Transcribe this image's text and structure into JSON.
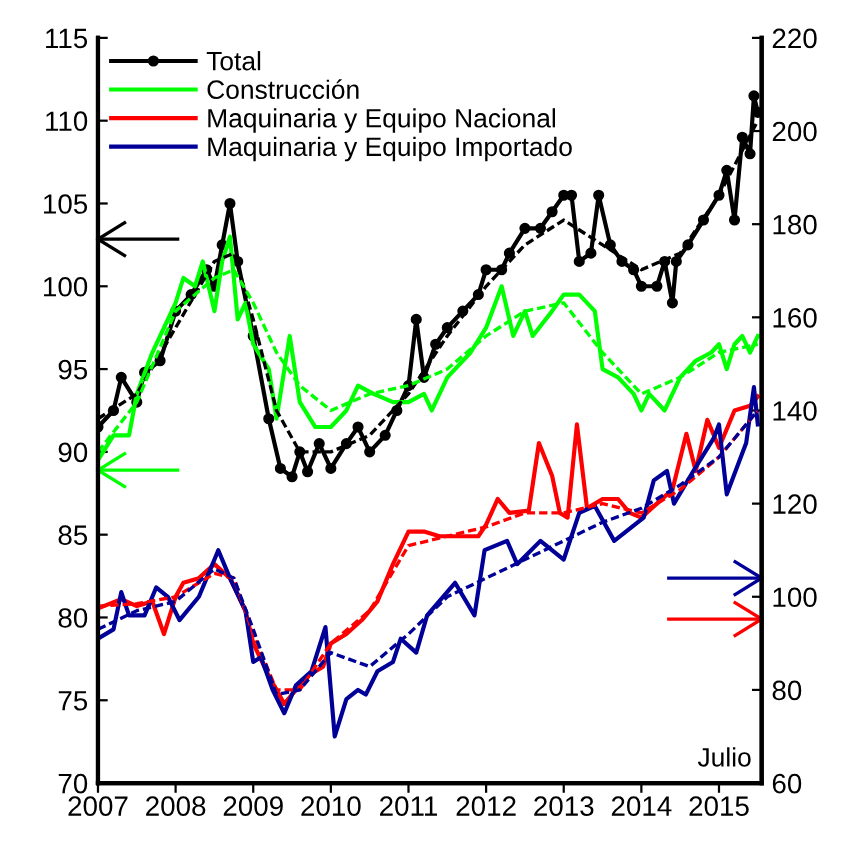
{
  "chart_data": {
    "type": "line",
    "xlim": [
      2007,
      2015.55
    ],
    "xticks": [
      2007,
      2008,
      2009,
      2010,
      2011,
      2012,
      2013,
      2014,
      2015
    ],
    "ylim": [
      70,
      115
    ],
    "yticks": [
      70,
      75,
      80,
      85,
      90,
      95,
      100,
      105,
      110,
      115
    ],
    "y2lim": [
      60,
      220
    ],
    "y2ticks": [
      60,
      80,
      100,
      120,
      140,
      160,
      180,
      200,
      220
    ],
    "legend": "top left",
    "grid": false,
    "annotations": [
      "Julio"
    ],
    "series": [
      {
        "name": "Total",
        "axis": "y",
        "color": "#000000",
        "marker": "circle",
        "line_style": "solid",
        "x": [
          2007.0,
          2007.2,
          2007.3,
          2007.5,
          2007.6,
          2007.8,
          2008.0,
          2008.2,
          2008.4,
          2008.5,
          2008.6,
          2008.7,
          2008.8,
          2009.0,
          2009.2,
          2009.35,
          2009.5,
          2009.6,
          2009.7,
          2009.85,
          2010.0,
          2010.2,
          2010.35,
          2010.5,
          2010.7,
          2010.85,
          2011.0,
          2011.1,
          2011.2,
          2011.35,
          2011.5,
          2011.7,
          2011.9,
          2012.0,
          2012.2,
          2012.3,
          2012.5,
          2012.7,
          2012.85,
          2013.0,
          2013.1,
          2013.2,
          2013.35,
          2013.45,
          2013.6,
          2013.75,
          2013.9,
          2014.0,
          2014.2,
          2014.3,
          2014.4,
          2014.45,
          2014.6,
          2014.8,
          2015.0,
          2015.1,
          2015.2,
          2015.3,
          2015.4,
          2015.45,
          2015.5
        ],
        "values": [
          91.5,
          92.5,
          94.5,
          93,
          94.8,
          95.5,
          98.5,
          99.5,
          101,
          100,
          102.5,
          105,
          101.5,
          97,
          92,
          89,
          88.5,
          90,
          88.8,
          90.5,
          89,
          90.5,
          91.5,
          90,
          91,
          92.5,
          94,
          98,
          94.5,
          96.5,
          97.5,
          98.5,
          99.5,
          101,
          101,
          102,
          103.5,
          103.5,
          104.5,
          105.5,
          105.5,
          101.5,
          102,
          105.5,
          102.5,
          101.5,
          101,
          100,
          100,
          101.5,
          99,
          101.5,
          102.5,
          104,
          105.5,
          107,
          104,
          109,
          108,
          111.5,
          110.5
        ]
      },
      {
        "name": "Construcción",
        "axis": "y",
        "color": "#00ff00",
        "line_style": "solid",
        "x": [
          2007.0,
          2007.2,
          2007.4,
          2007.5,
          2007.7,
          2008.0,
          2008.1,
          2008.25,
          2008.35,
          2008.5,
          2008.6,
          2008.7,
          2008.8,
          2008.9,
          2009.0,
          2009.2,
          2009.3,
          2009.47,
          2009.6,
          2009.8,
          2010.0,
          2010.2,
          2010.35,
          2010.55,
          2010.8,
          2011.0,
          2011.2,
          2011.3,
          2011.5,
          2011.8,
          2012.0,
          2012.2,
          2012.35,
          2012.5,
          2012.6,
          2012.85,
          2013.0,
          2013.2,
          2013.4,
          2013.5,
          2013.7,
          2013.9,
          2014.0,
          2014.1,
          2014.3,
          2014.5,
          2014.7,
          2014.9,
          2015.0,
          2015.1,
          2015.2,
          2015.3,
          2015.4,
          2015.5
        ],
        "values": [
          89.5,
          91,
          91,
          93.5,
          96,
          99,
          100.5,
          100,
          101.5,
          98.5,
          101.5,
          103,
          98,
          99,
          96.5,
          95,
          92,
          97,
          93,
          91.5,
          91.5,
          92.5,
          94,
          93.5,
          93,
          93,
          93.5,
          92.5,
          94.5,
          96,
          97.5,
          100,
          97,
          98.5,
          97,
          98.5,
          99.5,
          99.5,
          98.5,
          95,
          94.5,
          93.5,
          92.5,
          93.5,
          92.5,
          94.5,
          95.5,
          96,
          96.5,
          95,
          96.5,
          97,
          96,
          97
        ]
      },
      {
        "name": "Maquinaria y Equipo Nacional",
        "axis": "y2",
        "color": "#ff0000",
        "line_style": "solid",
        "x": [
          2007.0,
          2007.3,
          2007.5,
          2007.7,
          2007.85,
          2008.0,
          2008.1,
          2008.3,
          2008.5,
          2008.7,
          2008.9,
          2009.0,
          2009.2,
          2009.4,
          2009.55,
          2009.7,
          2009.9,
          2010.0,
          2010.2,
          2010.4,
          2010.6,
          2010.8,
          2011.0,
          2011.2,
          2011.4,
          2011.6,
          2011.9,
          2012.0,
          2012.15,
          2012.3,
          2012.55,
          2012.68,
          2012.85,
          2012.95,
          2013.05,
          2013.17,
          2013.3,
          2013.5,
          2013.7,
          2013.85,
          2014.0,
          2014.2,
          2014.4,
          2014.58,
          2014.7,
          2014.85,
          2015.0,
          2015.2,
          2015.4,
          2015.5
        ],
        "values": [
          97.5,
          99.5,
          98,
          99,
          92,
          100,
          103,
          104,
          107,
          104,
          97,
          90,
          83,
          77,
          80,
          83,
          85,
          90,
          92,
          95,
          99,
          107,
          114,
          114,
          113,
          113,
          113,
          115.5,
          121,
          118,
          118.5,
          133,
          126,
          118,
          117,
          137,
          119,
          121,
          121,
          118,
          117,
          120,
          123,
          135,
          127,
          138,
          132,
          140,
          141,
          143
        ]
      },
      {
        "name": "Maquinaria y Equipo Importado",
        "axis": "y2",
        "color": "#000099",
        "line_style": "solid",
        "x": [
          2007.0,
          2007.2,
          2007.3,
          2007.4,
          2007.6,
          2007.75,
          2007.9,
          2008.05,
          2008.3,
          2008.55,
          2008.7,
          2008.9,
          2009.0,
          2009.1,
          2009.25,
          2009.4,
          2009.55,
          2009.75,
          2009.93,
          2010.05,
          2010.2,
          2010.35,
          2010.45,
          2010.6,
          2010.8,
          2010.9,
          2011.1,
          2011.24,
          2011.6,
          2011.85,
          2011.98,
          2012.27,
          2012.4,
          2012.7,
          2013.0,
          2013.2,
          2013.4,
          2013.65,
          2014.03,
          2014.16,
          2014.33,
          2014.42,
          2014.67,
          2014.93,
          2015.0,
          2015.1,
          2015.35,
          2015.45,
          2015.5
        ],
        "values": [
          91,
          93,
          101,
          96,
          96,
          102,
          100,
          95,
          100,
          110,
          104,
          97,
          86,
          87,
          80,
          75,
          81,
          84,
          93.5,
          70,
          78,
          80,
          79,
          84,
          86,
          91,
          88,
          96,
          103,
          96,
          110,
          112,
          107,
          112,
          108,
          118,
          119.5,
          112,
          117,
          125,
          127,
          120,
          127,
          134,
          137,
          122,
          133,
          145,
          137
        ]
      },
      {
        "type": "line",
        "axis": "y",
        "color": "#000000",
        "line_style": "dashed",
        "x": [
          2007.0,
          2007.5,
          2008.0,
          2008.5,
          2008.75,
          2009.0,
          2009.3,
          2009.6,
          2010.0,
          2010.5,
          2011.0,
          2011.5,
          2012.0,
          2012.5,
          2013.0,
          2013.5,
          2014.0,
          2014.5,
          2015.0,
          2015.5
        ],
        "values": [
          92,
          93.5,
          97.5,
          101.5,
          102,
          98,
          92.5,
          90,
          90,
          91,
          93.5,
          97,
          100,
          102.5,
          104,
          102.5,
          101,
          102,
          105.5,
          110
        ]
      },
      {
        "type": "line",
        "axis": "y",
        "color": "#00ff00",
        "line_style": "dashed",
        "x": [
          2007.0,
          2007.5,
          2008.0,
          2008.5,
          2008.75,
          2009.0,
          2009.3,
          2009.6,
          2010.0,
          2010.5,
          2011.0,
          2011.5,
          2012.0,
          2012.5,
          2013.0,
          2013.5,
          2014.0,
          2014.5,
          2015.0,
          2015.5
        ],
        "values": [
          90,
          93,
          98.5,
          100.5,
          101,
          99,
          96,
          94,
          92.5,
          93.5,
          94,
          95,
          97,
          98.5,
          99,
          96,
          93.5,
          94.5,
          96,
          96.5
        ]
      },
      {
        "type": "line",
        "axis": "y2",
        "color": "#ff0000",
        "line_style": "dashed",
        "x": [
          2007.0,
          2007.5,
          2008.0,
          2008.5,
          2008.75,
          2009.0,
          2009.3,
          2009.6,
          2010.0,
          2010.5,
          2011.0,
          2011.5,
          2012.0,
          2012.5,
          2013.0,
          2013.5,
          2014.0,
          2014.5,
          2015.0,
          2015.5
        ],
        "values": [
          98,
          98.5,
          100,
          105,
          104,
          92,
          80,
          80,
          90,
          97,
          111,
          113,
          115,
          118,
          118,
          120,
          118,
          123,
          130,
          140
        ]
      },
      {
        "type": "line",
        "axis": "y2",
        "color": "#000099",
        "line_style": "dashed",
        "x": [
          2007.0,
          2007.5,
          2008.0,
          2008.5,
          2008.75,
          2009.0,
          2009.3,
          2009.6,
          2010.0,
          2010.5,
          2011.0,
          2011.5,
          2012.0,
          2012.5,
          2013.0,
          2013.5,
          2014.0,
          2014.5,
          2015.0,
          2015.5
        ],
        "values": [
          93,
          97,
          99,
          106,
          104,
          93,
          79,
          80,
          88,
          85,
          92,
          100,
          104,
          108,
          112,
          116,
          119,
          124,
          130,
          140
        ]
      }
    ]
  }
}
